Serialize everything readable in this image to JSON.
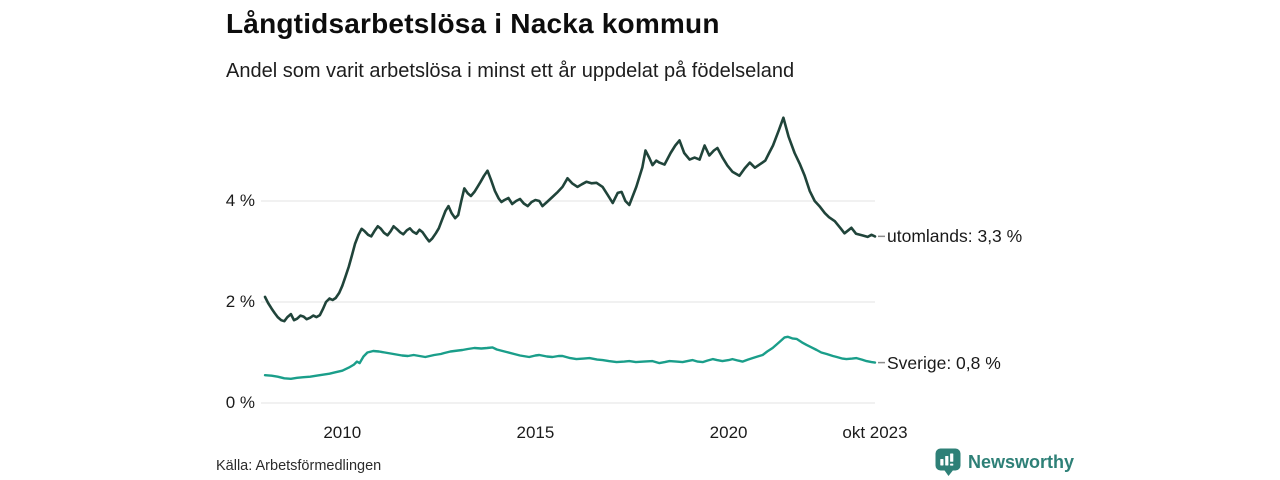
{
  "title": "Långtidsarbetslösa i Nacka kommun",
  "subtitle": "Andel som varit arbetslösa i minst ett år uppdelat på födelseland",
  "source": "Källa: Arbetsförmedlingen",
  "branding": {
    "name": "Newsworthy",
    "color": "#2e8077",
    "icon": "bar-chart-speech-bubble-icon"
  },
  "colors": {
    "background": "#ffffff",
    "gridline": "#e3e3e3",
    "leader_dash": "#8c8c8c",
    "text": "#1a1a1a"
  },
  "chart_data": {
    "type": "line",
    "title": "Långtidsarbetslösa i Nacka kommun",
    "subtitle": "Andel som varit arbetslösa i minst ett år uppdelat på födelseland",
    "unit": "%",
    "grid": "horizontal",
    "legend_position": "right-end-of-line",
    "x_axis": {
      "range": [
        2008.0,
        2023.79
      ],
      "ticks": [
        {
          "t": 2010,
          "label": "2010"
        },
        {
          "t": 2015,
          "label": "2015"
        },
        {
          "t": 2020,
          "label": "2020"
        },
        {
          "t": 2023.79,
          "label": "okt 2023"
        }
      ]
    },
    "y_axis": {
      "range": [
        0,
        5.9
      ],
      "ticks": [
        {
          "v": 0,
          "label": "0 %"
        },
        {
          "v": 2,
          "label": "2 %"
        },
        {
          "v": 4,
          "label": "4 %"
        }
      ]
    },
    "series": [
      {
        "name": "utomlands",
        "label": "utomlands: 3,3 %",
        "latest_value": "3,3 %",
        "color": "#20443a",
        "stroke_width": 2.6,
        "points": [
          [
            2008.0,
            2.1
          ],
          [
            2008.08,
            1.98
          ],
          [
            2008.17,
            1.87
          ],
          [
            2008.25,
            1.78
          ],
          [
            2008.33,
            1.7
          ],
          [
            2008.42,
            1.64
          ],
          [
            2008.5,
            1.62
          ],
          [
            2008.58,
            1.7
          ],
          [
            2008.67,
            1.76
          ],
          [
            2008.75,
            1.64
          ],
          [
            2008.83,
            1.67
          ],
          [
            2008.92,
            1.73
          ],
          [
            2009.0,
            1.71
          ],
          [
            2009.08,
            1.66
          ],
          [
            2009.17,
            1.69
          ],
          [
            2009.25,
            1.73
          ],
          [
            2009.33,
            1.7
          ],
          [
            2009.42,
            1.74
          ],
          [
            2009.5,
            1.86
          ],
          [
            2009.58,
            2.0
          ],
          [
            2009.67,
            2.07
          ],
          [
            2009.75,
            2.04
          ],
          [
            2009.83,
            2.08
          ],
          [
            2009.92,
            2.18
          ],
          [
            2010.0,
            2.32
          ],
          [
            2010.08,
            2.5
          ],
          [
            2010.17,
            2.7
          ],
          [
            2010.25,
            2.92
          ],
          [
            2010.33,
            3.15
          ],
          [
            2010.42,
            3.33
          ],
          [
            2010.5,
            3.45
          ],
          [
            2010.58,
            3.4
          ],
          [
            2010.67,
            3.33
          ],
          [
            2010.75,
            3.3
          ],
          [
            2010.83,
            3.4
          ],
          [
            2010.92,
            3.5
          ],
          [
            2011.0,
            3.45
          ],
          [
            2011.08,
            3.37
          ],
          [
            2011.17,
            3.32
          ],
          [
            2011.25,
            3.4
          ],
          [
            2011.33,
            3.5
          ],
          [
            2011.42,
            3.44
          ],
          [
            2011.5,
            3.38
          ],
          [
            2011.58,
            3.34
          ],
          [
            2011.67,
            3.42
          ],
          [
            2011.75,
            3.46
          ],
          [
            2011.83,
            3.39
          ],
          [
            2011.92,
            3.35
          ],
          [
            2012.0,
            3.43
          ],
          [
            2012.08,
            3.38
          ],
          [
            2012.17,
            3.28
          ],
          [
            2012.25,
            3.2
          ],
          [
            2012.33,
            3.26
          ],
          [
            2012.42,
            3.36
          ],
          [
            2012.5,
            3.46
          ],
          [
            2012.58,
            3.62
          ],
          [
            2012.67,
            3.8
          ],
          [
            2012.75,
            3.9
          ],
          [
            2012.83,
            3.76
          ],
          [
            2012.92,
            3.66
          ],
          [
            2013.0,
            3.72
          ],
          [
            2013.08,
            4.0
          ],
          [
            2013.16,
            4.25
          ],
          [
            2013.25,
            4.15
          ],
          [
            2013.33,
            4.1
          ],
          [
            2013.42,
            4.18
          ],
          [
            2013.5,
            4.28
          ],
          [
            2013.58,
            4.38
          ],
          [
            2013.67,
            4.5
          ],
          [
            2013.76,
            4.6
          ],
          [
            2013.85,
            4.42
          ],
          [
            2013.95,
            4.2
          ],
          [
            2014.05,
            4.05
          ],
          [
            2014.12,
            3.98
          ],
          [
            2014.2,
            4.02
          ],
          [
            2014.3,
            4.06
          ],
          [
            2014.4,
            3.94
          ],
          [
            2014.5,
            4.0
          ],
          [
            2014.6,
            4.04
          ],
          [
            2014.7,
            3.95
          ],
          [
            2014.8,
            3.9
          ],
          [
            2014.9,
            3.98
          ],
          [
            2015.0,
            4.02
          ],
          [
            2015.1,
            4.0
          ],
          [
            2015.18,
            3.9
          ],
          [
            2015.3,
            3.98
          ],
          [
            2015.44,
            4.08
          ],
          [
            2015.58,
            4.18
          ],
          [
            2015.7,
            4.28
          ],
          [
            2015.83,
            4.45
          ],
          [
            2015.95,
            4.35
          ],
          [
            2016.09,
            4.28
          ],
          [
            2016.2,
            4.33
          ],
          [
            2016.32,
            4.38
          ],
          [
            2016.45,
            4.35
          ],
          [
            2016.58,
            4.36
          ],
          [
            2016.74,
            4.28
          ],
          [
            2016.87,
            4.12
          ],
          [
            2017.0,
            3.96
          ],
          [
            2017.13,
            4.16
          ],
          [
            2017.23,
            4.18
          ],
          [
            2017.33,
            4.0
          ],
          [
            2017.43,
            3.92
          ],
          [
            2017.61,
            4.28
          ],
          [
            2017.77,
            4.67
          ],
          [
            2017.85,
            5.0
          ],
          [
            2017.95,
            4.85
          ],
          [
            2018.03,
            4.71
          ],
          [
            2018.13,
            4.8
          ],
          [
            2018.21,
            4.76
          ],
          [
            2018.34,
            4.72
          ],
          [
            2018.5,
            4.95
          ],
          [
            2018.62,
            5.1
          ],
          [
            2018.73,
            5.2
          ],
          [
            2018.85,
            4.95
          ],
          [
            2018.99,
            4.82
          ],
          [
            2019.12,
            4.86
          ],
          [
            2019.25,
            4.82
          ],
          [
            2019.38,
            5.1
          ],
          [
            2019.5,
            4.9
          ],
          [
            2019.62,
            5.0
          ],
          [
            2019.71,
            5.05
          ],
          [
            2019.85,
            4.85
          ],
          [
            2019.97,
            4.7
          ],
          [
            2020.1,
            4.58
          ],
          [
            2020.28,
            4.5
          ],
          [
            2020.42,
            4.65
          ],
          [
            2020.55,
            4.76
          ],
          [
            2020.68,
            4.66
          ],
          [
            2020.8,
            4.72
          ],
          [
            2020.95,
            4.8
          ],
          [
            2021.05,
            4.95
          ],
          [
            2021.15,
            5.1
          ],
          [
            2021.3,
            5.4
          ],
          [
            2021.42,
            5.65
          ],
          [
            2021.55,
            5.28
          ],
          [
            2021.71,
            4.95
          ],
          [
            2021.85,
            4.72
          ],
          [
            2021.97,
            4.5
          ],
          [
            2022.1,
            4.2
          ],
          [
            2022.23,
            4.0
          ],
          [
            2022.35,
            3.9
          ],
          [
            2022.49,
            3.76
          ],
          [
            2022.6,
            3.68
          ],
          [
            2022.75,
            3.6
          ],
          [
            2022.9,
            3.46
          ],
          [
            2023.0,
            3.36
          ],
          [
            2023.1,
            3.42
          ],
          [
            2023.18,
            3.47
          ],
          [
            2023.3,
            3.35
          ],
          [
            2023.45,
            3.32
          ],
          [
            2023.6,
            3.29
          ],
          [
            2023.7,
            3.33
          ],
          [
            2023.79,
            3.3
          ]
        ]
      },
      {
        "name": "Sverige",
        "label": "Sverige: 0,8 %",
        "latest_value": "0,8 %",
        "color": "#1a9e8a",
        "stroke_width": 2.4,
        "points": [
          [
            2008.0,
            0.55
          ],
          [
            2008.17,
            0.54
          ],
          [
            2008.33,
            0.52
          ],
          [
            2008.5,
            0.49
          ],
          [
            2008.67,
            0.48
          ],
          [
            2008.83,
            0.5
          ],
          [
            2009.0,
            0.51
          ],
          [
            2009.17,
            0.52
          ],
          [
            2009.33,
            0.54
          ],
          [
            2009.5,
            0.56
          ],
          [
            2009.67,
            0.58
          ],
          [
            2009.83,
            0.61
          ],
          [
            2010.0,
            0.64
          ],
          [
            2010.17,
            0.7
          ],
          [
            2010.3,
            0.76
          ],
          [
            2010.38,
            0.82
          ],
          [
            2010.45,
            0.79
          ],
          [
            2010.55,
            0.92
          ],
          [
            2010.65,
            1.0
          ],
          [
            2010.8,
            1.03
          ],
          [
            2010.95,
            1.02
          ],
          [
            2011.1,
            1.0
          ],
          [
            2011.25,
            0.98
          ],
          [
            2011.4,
            0.96
          ],
          [
            2011.55,
            0.94
          ],
          [
            2011.7,
            0.93
          ],
          [
            2011.85,
            0.95
          ],
          [
            2012.0,
            0.93
          ],
          [
            2012.15,
            0.91
          ],
          [
            2012.38,
            0.95
          ],
          [
            2012.55,
            0.97
          ],
          [
            2012.64,
            0.99
          ],
          [
            2012.8,
            1.02
          ],
          [
            2013.0,
            1.04
          ],
          [
            2013.11,
            1.05
          ],
          [
            2013.25,
            1.07
          ],
          [
            2013.42,
            1.09
          ],
          [
            2013.6,
            1.08
          ],
          [
            2013.75,
            1.09
          ],
          [
            2013.89,
            1.1
          ],
          [
            2014.0,
            1.06
          ],
          [
            2014.25,
            1.01
          ],
          [
            2014.45,
            0.97
          ],
          [
            2014.6,
            0.94
          ],
          [
            2014.84,
            0.91
          ],
          [
            2015.0,
            0.94
          ],
          [
            2015.1,
            0.95
          ],
          [
            2015.3,
            0.92
          ],
          [
            2015.44,
            0.91
          ],
          [
            2015.6,
            0.93
          ],
          [
            2015.7,
            0.93
          ],
          [
            2015.9,
            0.89
          ],
          [
            2016.06,
            0.87
          ],
          [
            2016.25,
            0.88
          ],
          [
            2016.4,
            0.89
          ],
          [
            2016.6,
            0.86
          ],
          [
            2016.74,
            0.85
          ],
          [
            2016.9,
            0.83
          ],
          [
            2017.1,
            0.81
          ],
          [
            2017.3,
            0.82
          ],
          [
            2017.43,
            0.83
          ],
          [
            2017.6,
            0.81
          ],
          [
            2017.8,
            0.82
          ],
          [
            2018.03,
            0.83
          ],
          [
            2018.21,
            0.79
          ],
          [
            2018.35,
            0.81
          ],
          [
            2018.47,
            0.83
          ],
          [
            2018.65,
            0.82
          ],
          [
            2018.81,
            0.81
          ],
          [
            2019.0,
            0.84
          ],
          [
            2019.07,
            0.85
          ],
          [
            2019.2,
            0.82
          ],
          [
            2019.33,
            0.81
          ],
          [
            2019.45,
            0.84
          ],
          [
            2019.59,
            0.87
          ],
          [
            2019.7,
            0.85
          ],
          [
            2019.84,
            0.83
          ],
          [
            2020.0,
            0.85
          ],
          [
            2020.1,
            0.87
          ],
          [
            2020.25,
            0.84
          ],
          [
            2020.36,
            0.82
          ],
          [
            2020.5,
            0.86
          ],
          [
            2020.62,
            0.89
          ],
          [
            2020.75,
            0.92
          ],
          [
            2020.88,
            0.95
          ],
          [
            2021.0,
            1.02
          ],
          [
            2021.14,
            1.09
          ],
          [
            2021.32,
            1.21
          ],
          [
            2021.45,
            1.3
          ],
          [
            2021.53,
            1.31
          ],
          [
            2021.65,
            1.28
          ],
          [
            2021.76,
            1.27
          ],
          [
            2021.9,
            1.2
          ],
          [
            2022.02,
            1.15
          ],
          [
            2022.15,
            1.1
          ],
          [
            2022.28,
            1.05
          ],
          [
            2022.4,
            1.0
          ],
          [
            2022.54,
            0.97
          ],
          [
            2022.7,
            0.93
          ],
          [
            2022.8,
            0.91
          ],
          [
            2022.95,
            0.88
          ],
          [
            2023.05,
            0.87
          ],
          [
            2023.2,
            0.88
          ],
          [
            2023.31,
            0.89
          ],
          [
            2023.45,
            0.86
          ],
          [
            2023.57,
            0.83
          ],
          [
            2023.7,
            0.81
          ],
          [
            2023.79,
            0.8
          ]
        ]
      }
    ]
  }
}
